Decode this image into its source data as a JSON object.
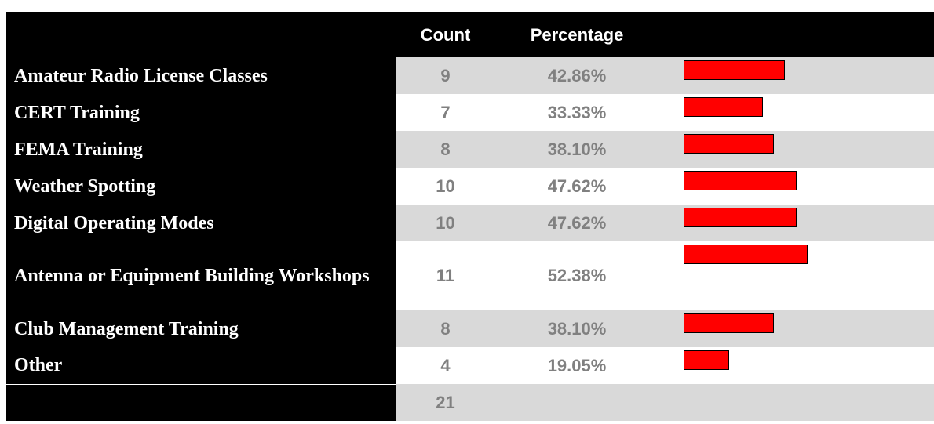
{
  "table": {
    "header": {
      "count": "Count",
      "percent": "Percentage"
    },
    "rows": [
      {
        "label": "Amateur Radio License Classes",
        "count": 9,
        "percent": 42.86,
        "percent_label": "42.86%"
      },
      {
        "label": "CERT Training",
        "count": 7,
        "percent": 33.33,
        "percent_label": "33.33%"
      },
      {
        "label": "FEMA Training",
        "count": 8,
        "percent": 38.1,
        "percent_label": "38.10%"
      },
      {
        "label": "Weather Spotting",
        "count": 10,
        "percent": 47.62,
        "percent_label": "47.62%"
      },
      {
        "label": "Digital Operating Modes",
        "count": 10,
        "percent": 47.62,
        "percent_label": "47.62%"
      },
      {
        "label": "Antenna or Equipment Building Workshops",
        "count": 11,
        "percent": 52.38,
        "percent_label": "52.38%"
      },
      {
        "label": "Club Management Training",
        "count": 8,
        "percent": 38.1,
        "percent_label": "38.10%"
      },
      {
        "label": "Other",
        "count": 4,
        "percent": 19.05,
        "percent_label": "19.05%"
      }
    ],
    "total": 21
  }
}
